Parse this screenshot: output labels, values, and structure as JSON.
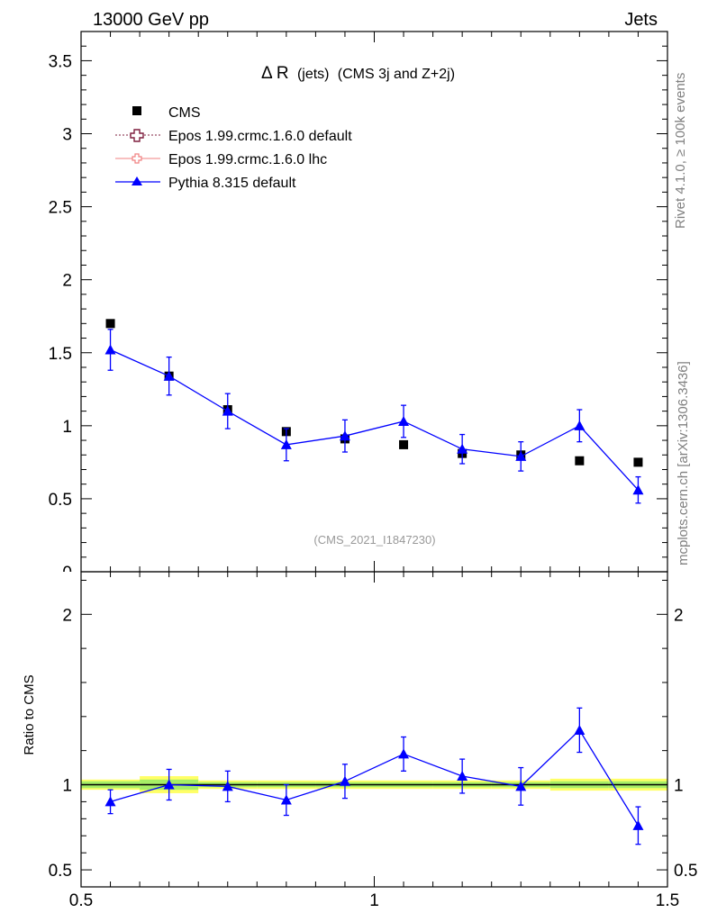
{
  "header": {
    "left": "13000 GeV pp",
    "right": "Jets"
  },
  "side_labels": {
    "rivet": "Rivet 4.1.0, ≥ 100k events",
    "mcplots": "mcplots.cern.ch [arXiv:1306.3436]"
  },
  "chart_data": [
    {
      "type": "scatter",
      "panel": "main",
      "title_symbol": "Δ R",
      "title_small": "(jets)",
      "title_rest": "(CMS 3j and Z+2j)",
      "watermark": "(CMS_2021_I1847230)",
      "xlim": [
        0.5,
        1.5
      ],
      "ylim": [
        0,
        3.7
      ],
      "yticks": [
        "0.5",
        "1",
        "1.5",
        "2",
        "2.5",
        "3",
        "3.5"
      ],
      "ytick_values": [
        0.5,
        1,
        1.5,
        2,
        2.5,
        3,
        3.5
      ],
      "bottom_tick_partial": "0",
      "legend": [
        {
          "label": "CMS",
          "style": "data"
        },
        {
          "label": "Epos 1.99.crmc.1.6.0 default",
          "style": "epos-default",
          "color": "#7f1f3f"
        },
        {
          "label": "Epos 1.99.crmc.1.6.0 lhc",
          "style": "epos-lhc",
          "color": "#f08080"
        },
        {
          "label": "Pythia 8.315 default",
          "style": "pythia",
          "color": "#0000ff"
        }
      ],
      "series": [
        {
          "name": "CMS",
          "x": [
            0.55,
            0.65,
            0.75,
            0.85,
            0.95,
            1.05,
            1.15,
            1.25,
            1.35,
            1.45
          ],
          "y": [
            1.7,
            1.34,
            1.11,
            0.96,
            0.91,
            0.87,
            0.81,
            0.8,
            0.76,
            0.75
          ]
        },
        {
          "name": "Pythia 8.315 default",
          "x": [
            0.55,
            0.65,
            0.75,
            0.85,
            0.95,
            1.05,
            1.15,
            1.25,
            1.35,
            1.45
          ],
          "y": [
            1.52,
            1.34,
            1.1,
            0.87,
            0.93,
            1.03,
            0.84,
            0.79,
            1.0,
            0.56
          ],
          "err": [
            0.14,
            0.13,
            0.12,
            0.11,
            0.11,
            0.11,
            0.1,
            0.1,
            0.11,
            0.09
          ]
        }
      ]
    },
    {
      "type": "scatter",
      "panel": "ratio",
      "ylabel": "Ratio to CMS",
      "xlim": [
        0.5,
        1.5
      ],
      "ylim": [
        0.4,
        2.25
      ],
      "yticks": [
        "0.5",
        "1",
        "2"
      ],
      "ytick_values": [
        0.5,
        1,
        2
      ],
      "xticks": [
        "0.5",
        "1",
        "1.5"
      ],
      "xtick_values": [
        0.5,
        1,
        1.5
      ],
      "band_edges": [
        0.5,
        0.6,
        0.7,
        0.8,
        0.9,
        1.0,
        1.1,
        1.2,
        1.3,
        1.4,
        1.5
      ],
      "band_inner": [
        0.02,
        0.03,
        0.015,
        0.015,
        0.015,
        0.015,
        0.015,
        0.015,
        0.02,
        0.02
      ],
      "band_outer": [
        0.03,
        0.05,
        0.025,
        0.025,
        0.025,
        0.025,
        0.025,
        0.025,
        0.035,
        0.035
      ],
      "series": [
        {
          "name": "Pythia 8.315 default",
          "x": [
            0.55,
            0.65,
            0.75,
            0.85,
            0.95,
            1.05,
            1.15,
            1.25,
            1.35,
            1.45
          ],
          "y": [
            0.9,
            1.0,
            0.99,
            0.91,
            1.02,
            1.18,
            1.05,
            0.99,
            1.32,
            0.76
          ],
          "err": [
            0.07,
            0.09,
            0.09,
            0.09,
            0.1,
            0.1,
            0.1,
            0.11,
            0.13,
            0.11
          ]
        }
      ]
    }
  ]
}
